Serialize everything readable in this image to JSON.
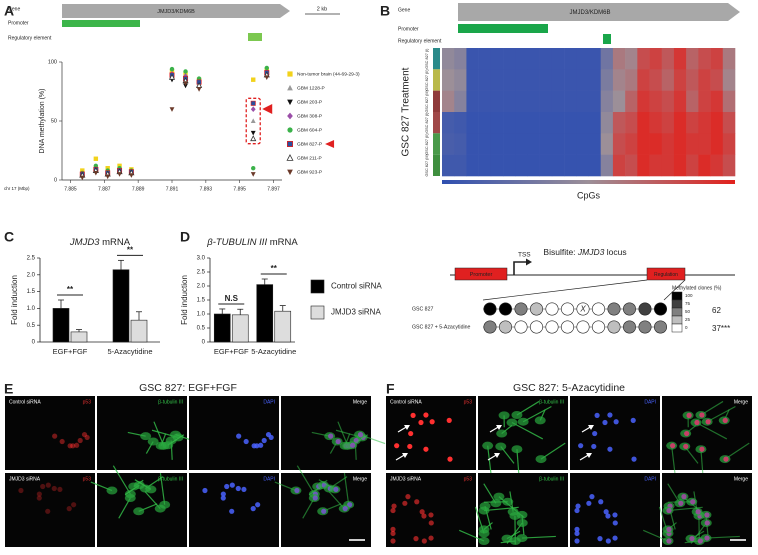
{
  "panel_labels": [
    "A",
    "B",
    "C",
    "D",
    "E",
    "F"
  ],
  "chart_data": [
    {
      "type": "scatter",
      "gene": "JMJD3/KDM6B",
      "track_labels": [
        "Gene",
        "Promoter",
        "Regulatory element"
      ],
      "scale_label": "2 kb",
      "ylabel": "DNA methylation (%)",
      "xlabel": "chr 17 (Mbp)",
      "x": [
        7.8857,
        7.8865,
        7.8872,
        7.8879,
        7.8886,
        7.891,
        7.8918,
        7.8926,
        7.8958,
        7.8966
      ],
      "series": [
        {
          "name": "Non-tumor brain (44-69-29-3)",
          "color": "#f2d21b",
          "marker": "square",
          "values": [
            8,
            18,
            10,
            12,
            9,
            92,
            90,
            85,
            85,
            93
          ]
        },
        {
          "name": "GBM 1228-P",
          "color": "#9a9a9a",
          "marker": "triangle",
          "values": [
            5,
            10,
            6,
            9,
            7,
            88,
            87,
            82,
            50,
            90
          ]
        },
        {
          "name": "GBM 203-P",
          "color": "#111111",
          "marker": "triangle-down",
          "values": [
            3,
            7,
            4,
            6,
            5,
            85,
            80,
            78,
            40,
            88
          ]
        },
        {
          "name": "GBM 308-P",
          "color": "#9b4fa8",
          "marker": "diamond",
          "values": [
            4,
            8,
            5,
            7,
            6,
            90,
            88,
            84,
            60,
            92
          ]
        },
        {
          "name": "GBM 604-P",
          "color": "#3bb24a",
          "marker": "circle",
          "values": [
            6,
            12,
            8,
            10,
            8,
            94,
            92,
            86,
            10,
            95
          ]
        },
        {
          "name": "GBM 827-P",
          "color": "#2a4f9e",
          "edge": "#e02020",
          "marker": "square",
          "highlight": true,
          "values": [
            5,
            9,
            6,
            8,
            7,
            89,
            86,
            83,
            65,
            91
          ]
        },
        {
          "name": "GBM 211-P",
          "color": "#333333",
          "marker": "triangle-open",
          "values": [
            4,
            8,
            5,
            7,
            6,
            87,
            84,
            80,
            35,
            89
          ]
        },
        {
          "name": "GBM 923-P",
          "color": "#6b3a2a",
          "marker": "triangle-down",
          "values": [
            2,
            6,
            3,
            5,
            4,
            60,
            82,
            77,
            5,
            87
          ]
        }
      ],
      "xlim": [
        7.8845,
        7.8975
      ],
      "xticks": [
        7.885,
        7.887,
        7.889,
        7.891,
        7.893,
        7.895,
        7.897
      ],
      "ylim": [
        0,
        100
      ],
      "yticks": [
        0,
        50,
        100
      ],
      "legend": "right"
    },
    {
      "type": "heatmap",
      "gene": "JMJD3/KDM6B",
      "track_labels": [
        "Gene",
        "Promoter",
        "Regulatory element"
      ],
      "ylabel": "GSC 827 Treatment",
      "xlabel": "CpGs",
      "rows": [
        "GSC 827 (I)",
        "GSC 827 (II)",
        "GSC 827 (III)",
        "GSC 827 (I)",
        "GSC 827 (II)",
        "GSC 827 (III)"
      ],
      "row_colors": [
        "#2a8a8a",
        "#b9b94a",
        "#8f3a3a",
        "#a04848",
        "#4a9a4a",
        "#3f8f3f"
      ],
      "colors": [
        "#2f4fb0",
        "#9c8f98",
        "#e2211c"
      ],
      "zlim": [
        0,
        100
      ],
      "values": [
        [
          45,
          40,
          5,
          5,
          5,
          5,
          5,
          5,
          5,
          5,
          5,
          5,
          5,
          30,
          60,
          55,
          80,
          85,
          75,
          90,
          70,
          80,
          85,
          60
        ],
        [
          50,
          45,
          5,
          5,
          5,
          5,
          5,
          5,
          5,
          5,
          5,
          5,
          5,
          35,
          55,
          60,
          85,
          80,
          70,
          85,
          75,
          85,
          80,
          55
        ],
        [
          55,
          40,
          5,
          5,
          5,
          5,
          5,
          5,
          5,
          5,
          5,
          5,
          5,
          40,
          50,
          70,
          90,
          85,
          80,
          90,
          70,
          85,
          90,
          65
        ],
        [
          10,
          8,
          3,
          3,
          3,
          3,
          3,
          3,
          3,
          3,
          3,
          3,
          3,
          45,
          75,
          80,
          95,
          90,
          85,
          95,
          85,
          90,
          95,
          80
        ],
        [
          12,
          10,
          3,
          3,
          3,
          3,
          3,
          3,
          3,
          3,
          3,
          3,
          3,
          50,
          80,
          85,
          95,
          95,
          90,
          95,
          90,
          90,
          95,
          85
        ],
        [
          8,
          8,
          3,
          3,
          3,
          3,
          3,
          3,
          3,
          3,
          3,
          3,
          3,
          40,
          85,
          80,
          95,
          90,
          90,
          95,
          85,
          95,
          90,
          80
        ]
      ]
    },
    {
      "type": "bar",
      "title": "JMJD3 mRNA",
      "title_italic_words": [
        0
      ],
      "ylabel": "Fold induction",
      "categories": [
        "EGF+FGF",
        "5-Azacytidine"
      ],
      "series": [
        {
          "color": "#000000",
          "values": [
            1.0,
            2.15
          ],
          "errors": [
            0.25,
            0.28
          ]
        },
        {
          "color": "#dddddd",
          "values": [
            0.3,
            0.65
          ],
          "errors": [
            0.07,
            0.25
          ]
        }
      ],
      "annotations": [
        "**",
        "**"
      ],
      "ylim": [
        0,
        2.5
      ],
      "yticks": [
        0,
        0.5,
        {
          "value": 1,
          "label": "1.0"
        },
        1.5,
        {
          "value": 2,
          "label": "2.0"
        },
        2.5
      ]
    },
    {
      "type": "bar",
      "title": "β-TUBULIN III mRNA",
      "title_italic_words": [
        0,
        1
      ],
      "ylabel": "Fold induction",
      "categories": [
        "EGF+FGF",
        "5-Azacytidine"
      ],
      "series": [
        {
          "name": "Control siRNA",
          "color": "#000000",
          "values": [
            1.0,
            2.05
          ],
          "errors": [
            0.18,
            0.2
          ]
        },
        {
          "name": "JMJD3 siRNA",
          "color": "#dddddd",
          "values": [
            0.97,
            1.1
          ],
          "errors": [
            0.2,
            0.2
          ]
        }
      ],
      "annotations": [
        "N.S",
        "**"
      ],
      "ylim": [
        0,
        3
      ],
      "yticks": [
        0,
        0.5,
        {
          "value": 1,
          "label": "1.0"
        },
        1.5,
        {
          "value": 2,
          "label": "2.0"
        },
        2.5,
        {
          "value": 3,
          "label": "3.0"
        }
      ],
      "legend": "right"
    }
  ],
  "bisulfite": {
    "title": "Bisulfite: JMJD3 locus",
    "title_italic_words": [
      1
    ],
    "elements": [
      "Promoter",
      "TSS",
      "Regulation"
    ],
    "marked_cpg": "X",
    "samples": [
      {
        "name": "GSC 827",
        "cpgs": [
          100,
          100,
          50,
          25,
          0,
          0,
          0,
          0,
          50,
          50,
          75,
          100
        ],
        "methylated": 62
      },
      {
        "name": "GSC 827 + 5-Azacytidine",
        "cpgs": [
          50,
          25,
          0,
          0,
          0,
          0,
          0,
          0,
          25,
          50,
          50,
          50
        ],
        "methylated": 37,
        "methylated_label": "37***"
      }
    ],
    "legend_title": "Methylated clones (%)",
    "legend_levels": [
      100,
      75,
      50,
      25,
      0
    ]
  },
  "microscopy": [
    {
      "title": "GSC 827: EGF+FGF",
      "rows": [
        "Control siRNA",
        "JMJD3 siRNA"
      ],
      "channels": [
        "p53",
        "β-tubulin III",
        "DAPI",
        "Merge"
      ]
    },
    {
      "title": "GSC 827: 5-Azacytidine",
      "rows": [
        "Control siRNA",
        "JMJD3 siRNA"
      ],
      "channels": [
        "p53",
        "β-tubulin III",
        "DAPI",
        "Merge"
      ]
    }
  ]
}
